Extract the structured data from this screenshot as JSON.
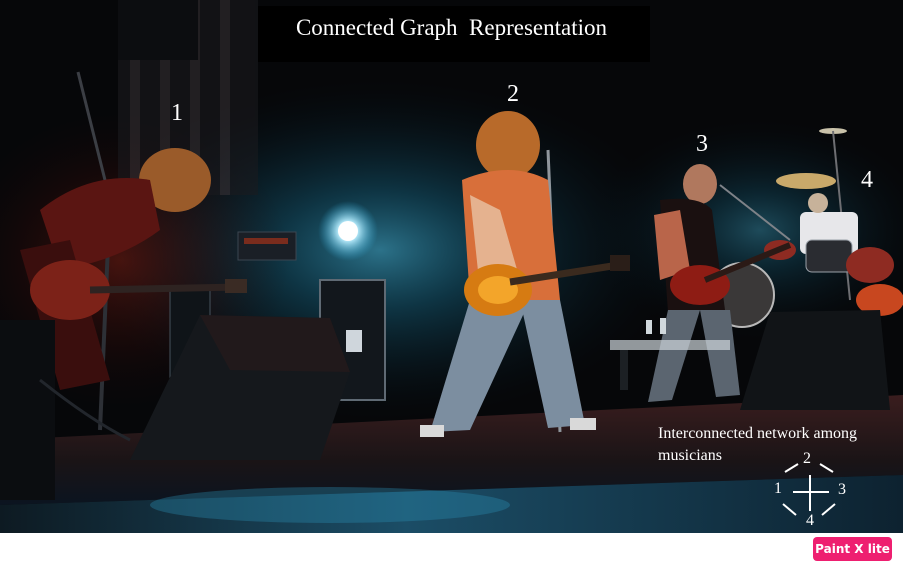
{
  "overlay": {
    "title": "Connected Graph  Representation",
    "labels": [
      "1",
      "2",
      "3",
      "4"
    ],
    "caption": "Interconnected network among musicians",
    "graph": {
      "top": "2",
      "left": "1",
      "right": "3",
      "bottom": "4"
    }
  },
  "watermark": {
    "text": "Paint X lite",
    "color": "#ee1f70"
  }
}
